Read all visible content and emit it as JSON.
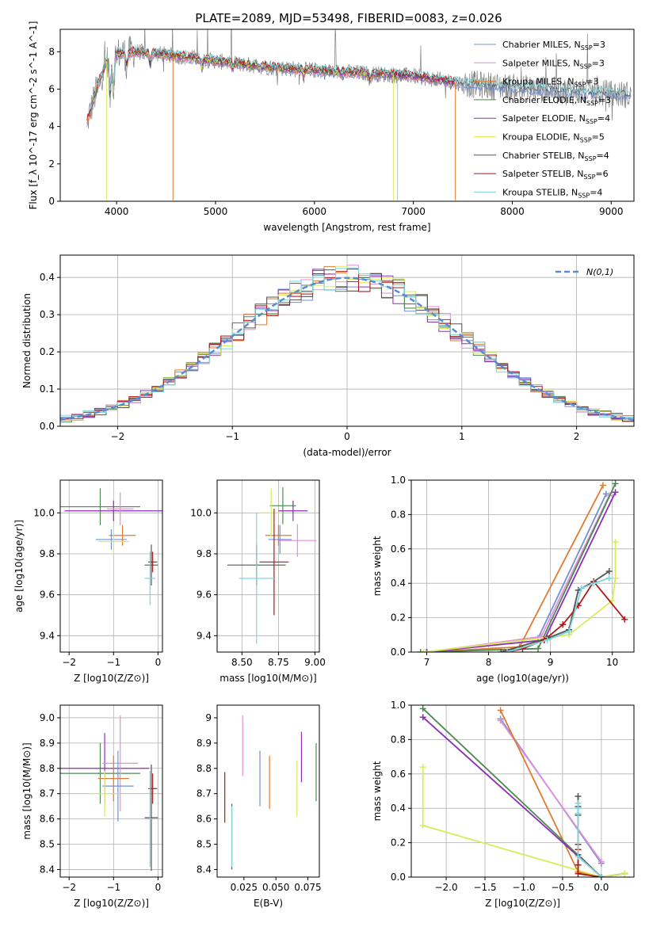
{
  "chart_data": [
    {
      "type": "line",
      "id": "spectrum",
      "title": "PLATE=2089, MJD=53498, FIBERID=0083, z=0.026",
      "xlabel": "wavelength [Angstrom, rest frame]",
      "ylabel": "Flux [f_λ 10^-17 erg cm^-2 s^-1 A^-1]",
      "xlim": [
        3430,
        9230
      ],
      "ylim": [
        0,
        9.2
      ],
      "xticks": [
        4000,
        5000,
        6000,
        7000,
        8000,
        9000
      ],
      "yticks": [
        0,
        2,
        4,
        6,
        8
      ],
      "grid": false,
      "legend_position": "top-right",
      "continuum": {
        "x": [
          3700,
          3800,
          3900,
          4000,
          4200,
          4500,
          5000,
          5500,
          6000,
          6500,
          7000,
          7500,
          8000,
          8500,
          9000,
          9200
        ],
        "y": [
          4.2,
          6.0,
          7.5,
          7.9,
          8.0,
          7.85,
          7.5,
          7.2,
          7.0,
          6.85,
          6.7,
          6.3,
          6.1,
          5.9,
          5.75,
          5.7
        ]
      },
      "series": [
        {
          "name": "Chabrier MILES, N_SSP=3",
          "color": "#6f8fd8"
        },
        {
          "name": "Salpeter MILES, N_SSP=3",
          "color": "#e48ed8"
        },
        {
          "name": "Kroupa MILES, N_SSP=3",
          "color": "#e07a2e"
        },
        {
          "name": "Chabrier ELODIE, N_SSP=3",
          "color": "#4d8a52"
        },
        {
          "name": "Salpeter ELODIE, N_SSP=4",
          "color": "#8b2eb8"
        },
        {
          "name": "Kroupa ELODIE, N_SSP=5",
          "color": "#d6ec5a"
        },
        {
          "name": "Chabrier STELIB, N_SSP=4",
          "color": "#555555"
        },
        {
          "name": "Salpeter STELIB, N_SSP=6",
          "color": "#b01818"
        },
        {
          "name": "Kroupa STELIB, N_SSP=4",
          "color": "#7fd6dc"
        }
      ],
      "data_line": {
        "color": "#808080"
      }
    },
    {
      "type": "line",
      "id": "residuals",
      "xlabel": "(data-model)/error",
      "ylabel": "Normed distribution",
      "xlim": [
        -2.5,
        2.5
      ],
      "ylim": [
        0,
        0.46
      ],
      "xticks": [
        -2,
        -1,
        0,
        1,
        2
      ],
      "yticks": [
        0.0,
        0.1,
        0.2,
        0.3,
        0.4
      ],
      "grid": true,
      "legend": "N(0,1)",
      "legend_position": "top-right",
      "gauss_color": "#5a8ad8",
      "bin_width": 0.1
    },
    {
      "type": "scatter",
      "id": "age-vs-Z",
      "xlabel": "Z [log10(Z/Z⊙)]",
      "ylabel": "age [log10(age/yr)]",
      "xlim": [
        -2.2,
        0.1
      ],
      "ylim": [
        9.32,
        10.16
      ],
      "xticks": [
        -2,
        -1,
        0
      ],
      "yticks": [
        9.4,
        9.6,
        9.8,
        10.0
      ],
      "grid": true,
      "points": [
        {
          "x": -1.3,
          "y": 10.03,
          "xerr": 0.9,
          "yerr": 0.09,
          "color": "#4d8a52"
        },
        {
          "x": -1.0,
          "y": 10.01,
          "xerr": 1.1,
          "yerr": 0.05,
          "color": "#8b2eb8"
        },
        {
          "x": -0.85,
          "y": 10.02,
          "xerr": 0.3,
          "yerr": 0.08,
          "color": "#e48ed8"
        },
        {
          "x": -1.05,
          "y": 9.87,
          "xerr": 0.35,
          "yerr": 0.05,
          "color": "#6f8fd8"
        },
        {
          "x": -0.8,
          "y": 9.89,
          "xerr": 0.3,
          "yerr": 0.05,
          "color": "#e07a2e"
        },
        {
          "x": -1.0,
          "y": 9.86,
          "xerr": 0.35,
          "yerr": 0.07,
          "color": "#d6ec5a"
        },
        {
          "x": -0.15,
          "y": 9.745,
          "xerr": 0.15,
          "yerr": 0.1,
          "color": "#555555"
        },
        {
          "x": -0.12,
          "y": 9.76,
          "xerr": 0.1,
          "yerr": 0.05,
          "color": "#b01818"
        },
        {
          "x": -0.18,
          "y": 9.68,
          "xerr": 0.12,
          "yerr": 0.13,
          "color": "#7fd6dc"
        }
      ]
    },
    {
      "type": "scatter",
      "id": "age-vs-mass",
      "xlabel": "mass [log10(M/M⊙)]",
      "ylabel": "",
      "xlim": [
        8.33,
        9.03
      ],
      "ylim": [
        9.32,
        10.16
      ],
      "xticks": [
        8.5,
        8.75,
        9.0
      ],
      "ytick_labels": [
        "9.4",
        "9.6",
        "9.8",
        "10.0"
      ],
      "yticks": [
        9.4,
        9.6,
        9.8,
        10.0
      ],
      "grid": true,
      "points": [
        {
          "x": 8.78,
          "y": 10.035,
          "xerr": 0.09,
          "yerr": 0.09,
          "color": "#4d8a52"
        },
        {
          "x": 8.85,
          "y": 10.01,
          "xerr": 0.1,
          "yerr": 0.05,
          "color": "#8b2eb8"
        },
        {
          "x": 8.88,
          "y": 9.865,
          "xerr": 0.13,
          "yerr": 0.08,
          "color": "#e48ed8"
        },
        {
          "x": 8.76,
          "y": 9.87,
          "xerr": 0.08,
          "yerr": 0.07,
          "color": "#6f8fd8"
        },
        {
          "x": 8.75,
          "y": 9.89,
          "xerr": 0.09,
          "yerr": 0.05,
          "color": "#e07a2e"
        },
        {
          "x": 8.7,
          "y": 10.0,
          "xerr": 0.08,
          "yerr": 0.12,
          "color": "#d6ec5a"
        },
        {
          "x": 8.6,
          "y": 9.745,
          "xerr": 0.2,
          "yerr": 0.1,
          "color": "#555555"
        },
        {
          "x": 8.72,
          "y": 9.76,
          "xerr": 0.1,
          "yerr": 0.26,
          "color": "#b01818"
        },
        {
          "x": 8.6,
          "y": 9.68,
          "xerr": 0.12,
          "yerr": 0.32,
          "color": "#7fd6dc"
        }
      ]
    },
    {
      "type": "line",
      "id": "mass-weight-vs-age",
      "xlabel": "age (log10(age/yr))",
      "ylabel": "mass weight",
      "xlim": [
        6.75,
        10.35
      ],
      "ylim": [
        0,
        1.0
      ],
      "xticks": [
        7,
        8,
        9,
        10
      ],
      "yticks": [
        0.0,
        0.2,
        0.4,
        0.6,
        0.8,
        1.0
      ],
      "grid": true,
      "series": [
        {
          "color": "#6f8fd8",
          "x": [
            7.0,
            8.8,
            9.9
          ],
          "y": [
            0.0,
            0.08,
            0.92
          ]
        },
        {
          "color": "#e48ed8",
          "x": [
            7.0,
            8.85,
            9.95
          ],
          "y": [
            0.0,
            0.09,
            0.91
          ]
        },
        {
          "color": "#e07a2e",
          "x": [
            7.0,
            8.5,
            9.85
          ],
          "y": [
            0.0,
            0.03,
            0.97
          ]
        },
        {
          "color": "#4d8a52",
          "x": [
            6.9,
            8.8,
            10.05
          ],
          "y": [
            0.0,
            0.02,
            0.98
          ]
        },
        {
          "color": "#8b2eb8",
          "x": [
            7.0,
            8.9,
            10.05
          ],
          "y": [
            0.0,
            0.07,
            0.93
          ]
        },
        {
          "color": "#d6ec5a",
          "x": [
            6.95,
            9.3,
            10.0,
            10.05,
            10.05
          ],
          "y": [
            0.0,
            0.1,
            0.3,
            0.43,
            0.64
          ]
        },
        {
          "color": "#555555",
          "x": [
            8.2,
            8.95,
            9.3,
            9.45,
            9.7,
            9.95
          ],
          "y": [
            0.0,
            0.08,
            0.13,
            0.36,
            0.41,
            0.47
          ]
        },
        {
          "color": "#b01818",
          "x": [
            8.3,
            8.55,
            8.9,
            9.2,
            9.45,
            9.7,
            10.2
          ],
          "y": [
            0.0,
            0.02,
            0.07,
            0.16,
            0.27,
            0.41,
            0.19
          ]
        },
        {
          "color": "#7fd6dc",
          "x": [
            8.3,
            8.95,
            9.3,
            9.5,
            9.7,
            9.95
          ],
          "y": [
            0.0,
            0.07,
            0.12,
            0.37,
            0.4,
            0.43
          ]
        }
      ]
    },
    {
      "type": "scatter",
      "id": "mass-vs-Z",
      "xlabel": "Z [log10(Z/Z⊙)]",
      "ylabel": "mass [log10(M/M⊙)]",
      "xlim": [
        -2.2,
        0.1
      ],
      "ylim": [
        8.37,
        9.05
      ],
      "xticks": [
        -2,
        -1,
        0
      ],
      "yticks": [
        8.4,
        8.5,
        8.6,
        8.7,
        8.8,
        8.9,
        9.0
      ],
      "grid": true,
      "points": [
        {
          "x": -1.3,
          "y": 8.78,
          "xerr": 0.9,
          "yerr": 0.12,
          "color": "#4d8a52"
        },
        {
          "x": -1.2,
          "y": 8.8,
          "xerr": 1.0,
          "yerr": 0.14,
          "color": "#8b2eb8"
        },
        {
          "x": -0.85,
          "y": 8.82,
          "xerr": 0.4,
          "yerr": 0.19,
          "color": "#e48ed8"
        },
        {
          "x": -0.9,
          "y": 8.73,
          "xerr": 0.35,
          "yerr": 0.14,
          "color": "#6f8fd8"
        },
        {
          "x": -1.0,
          "y": 8.76,
          "xerr": 0.35,
          "yerr": 0.09,
          "color": "#e07a2e"
        },
        {
          "x": -1.2,
          "y": 8.7,
          "xerr": 0.35,
          "yerr": 0.09,
          "color": "#d6ec5a"
        },
        {
          "x": -0.15,
          "y": 8.605,
          "xerr": 0.15,
          "yerr": 0.21,
          "color": "#555555"
        },
        {
          "x": -0.12,
          "y": 8.72,
          "xerr": 0.1,
          "yerr": 0.06,
          "color": "#b01818"
        },
        {
          "x": -0.18,
          "y": 8.6,
          "xerr": 0.1,
          "yerr": 0.19,
          "color": "#7fd6dc"
        }
      ]
    },
    {
      "type": "scatter",
      "id": "mass-vs-EBV",
      "xlabel": "E(B-V)",
      "ylabel": "",
      "xlim": [
        0.004,
        0.084
      ],
      "ylim": [
        8.37,
        9.05
      ],
      "xticks": [
        0.025,
        0.05,
        0.075
      ],
      "xtick_labels": [
        "0.025",
        "0.050",
        "0.075"
      ],
      "yticks": [
        8.4,
        8.5,
        8.6,
        8.7,
        8.8,
        8.9,
        9.0
      ],
      "grid": false,
      "points": [
        {
          "x": 0.01,
          "y": 8.685,
          "yerr": 0.1,
          "color": "#b01818"
        },
        {
          "x": 0.0155,
          "y": 8.53,
          "yerr": 0.13,
          "color": "#555555"
        },
        {
          "x": 0.0155,
          "y": 8.53,
          "yerr": 0.12,
          "color": "#7fd6dc"
        },
        {
          "x": 0.024,
          "y": 8.89,
          "yerr": 0.12,
          "color": "#e48ed8"
        },
        {
          "x": 0.0375,
          "y": 8.76,
          "yerr": 0.11,
          "color": "#6f8fd8"
        },
        {
          "x": 0.045,
          "y": 8.745,
          "yerr": 0.105,
          "color": "#e07a2e"
        },
        {
          "x": 0.0665,
          "y": 8.72,
          "yerr": 0.11,
          "color": "#d6ec5a"
        },
        {
          "x": 0.07,
          "y": 8.845,
          "yerr": 0.1,
          "color": "#8b2eb8"
        },
        {
          "x": 0.0815,
          "y": 8.785,
          "yerr": 0.115,
          "color": "#4d8a52"
        }
      ]
    },
    {
      "type": "line",
      "id": "mass-weight-vs-Z",
      "xlabel": "Z [log10(Z/Z⊙)]",
      "ylabel": "mass weight",
      "xlim": [
        -2.45,
        0.42
      ],
      "ylim": [
        0,
        1.0
      ],
      "xticks": [
        -2.0,
        -1.5,
        -1.0,
        -0.5,
        0.0
      ],
      "yticks": [
        0.0,
        0.2,
        0.4,
        0.6,
        0.8,
        1.0
      ],
      "grid": true,
      "series": [
        {
          "color": "#6f8fd8",
          "x": [
            -1.3,
            0.0
          ],
          "y": [
            0.92,
            0.08
          ]
        },
        {
          "color": "#e48ed8",
          "x": [
            -1.3,
            0.0
          ],
          "y": [
            0.91,
            0.09
          ]
        },
        {
          "color": "#e07a2e",
          "x": [
            -1.3,
            -0.3,
            0.0
          ],
          "y": [
            0.97,
            0.03,
            0.0
          ]
        },
        {
          "color": "#4d8a52",
          "x": [
            -2.3,
            0.0,
            0.3
          ],
          "y": [
            0.98,
            0.0,
            0.02
          ]
        },
        {
          "color": "#8b2eb8",
          "x": [
            -2.3,
            0.0,
            0.3
          ],
          "y": [
            0.93,
            0.0,
            0.02
          ]
        },
        {
          "color": "#d6ec5a",
          "x": [
            -2.3,
            -2.3,
            0.0,
            0.3
          ],
          "y": [
            0.64,
            0.3,
            0.0,
            0.02
          ]
        },
        {
          "color": "#555555",
          "x": [
            -0.3,
            -0.3,
            -0.3,
            -0.3,
            0.0
          ],
          "y": [
            0.47,
            0.41,
            0.36,
            0.13,
            0.0
          ]
        },
        {
          "color": "#b01818",
          "x": [
            -0.3,
            -0.3,
            -0.3,
            -0.3,
            0.0
          ],
          "y": [
            0.19,
            0.16,
            0.07,
            0.02,
            0.0
          ]
        },
        {
          "color": "#7fd6dc",
          "x": [
            -0.3,
            -0.3,
            -0.3,
            -0.3,
            0.0
          ],
          "y": [
            0.43,
            0.4,
            0.37,
            0.12,
            0.0
          ]
        }
      ]
    }
  ]
}
